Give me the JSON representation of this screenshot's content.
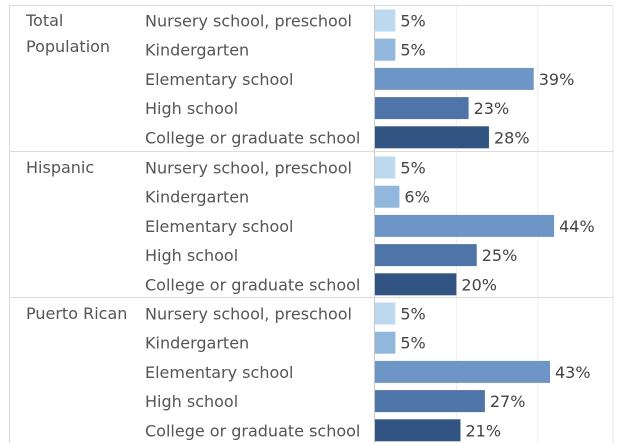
{
  "chart_data": {
    "type": "bar",
    "orientation": "horizontal",
    "title": "",
    "xlabel": "",
    "ylabel": "",
    "xlim": [
      0,
      60
    ],
    "grid": true,
    "legend": "none",
    "categories": [
      "Nursery school, preschool",
      "Kindergarten",
      "Elementary school",
      "High school",
      "College or graduate school"
    ],
    "colors": [
      "#bcd9ef",
      "#92b7dc",
      "#6d95c5",
      "#4f74a8",
      "#325483"
    ],
    "groups": [
      {
        "label": [
          "Total",
          "Population"
        ],
        "values": [
          5,
          5,
          39,
          23,
          28
        ],
        "value_labels": [
          "5%",
          "5%",
          "39%",
          "23%",
          "28%"
        ]
      },
      {
        "label": [
          "Hispanic"
        ],
        "values": [
          5,
          6,
          44,
          25,
          20
        ],
        "value_labels": [
          "5%",
          "6%",
          "44%",
          "25%",
          "20%"
        ]
      },
      {
        "label": [
          "Puerto Rican"
        ],
        "values": [
          5,
          5,
          43,
          27,
          21
        ],
        "value_labels": [
          "5%",
          "5%",
          "43%",
          "27%",
          "21%"
        ]
      }
    ]
  }
}
